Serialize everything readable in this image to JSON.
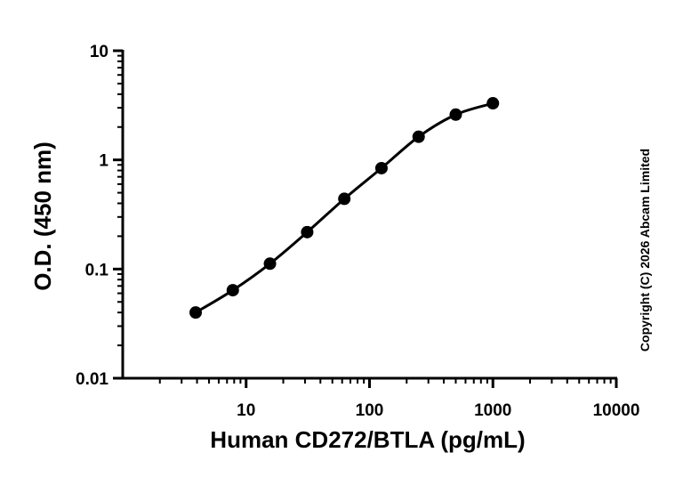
{
  "chart_data": {
    "type": "scatter",
    "title": "",
    "xlabel": "Human CD272/BTLA (pg/mL)",
    "ylabel": "O.D. (450 nm)",
    "x_scale": "log",
    "y_scale": "log",
    "xlim": [
      1,
      10000
    ],
    "ylim": [
      0.01,
      10
    ],
    "x_ticks": [
      10,
      100,
      1000,
      10000
    ],
    "x_tick_labels": [
      "10",
      "100",
      "1000",
      "10000"
    ],
    "y_ticks": [
      0.01,
      0.1,
      1,
      10
    ],
    "y_tick_labels": [
      "0.01",
      "0.1",
      "1",
      "10"
    ],
    "grid": false,
    "points": [
      {
        "x": 3.9,
        "y": 0.04
      },
      {
        "x": 7.8,
        "y": 0.064
      },
      {
        "x": 15.6,
        "y": 0.112
      },
      {
        "x": 31.25,
        "y": 0.218
      },
      {
        "x": 62.5,
        "y": 0.44
      },
      {
        "x": 125,
        "y": 0.84
      },
      {
        "x": 250,
        "y": 1.63
      },
      {
        "x": 500,
        "y": 2.6
      },
      {
        "x": 1000,
        "y": 3.3
      }
    ],
    "fit_curve": true
  },
  "copyright": "Copyright (C) 2026 Abcam Limited"
}
